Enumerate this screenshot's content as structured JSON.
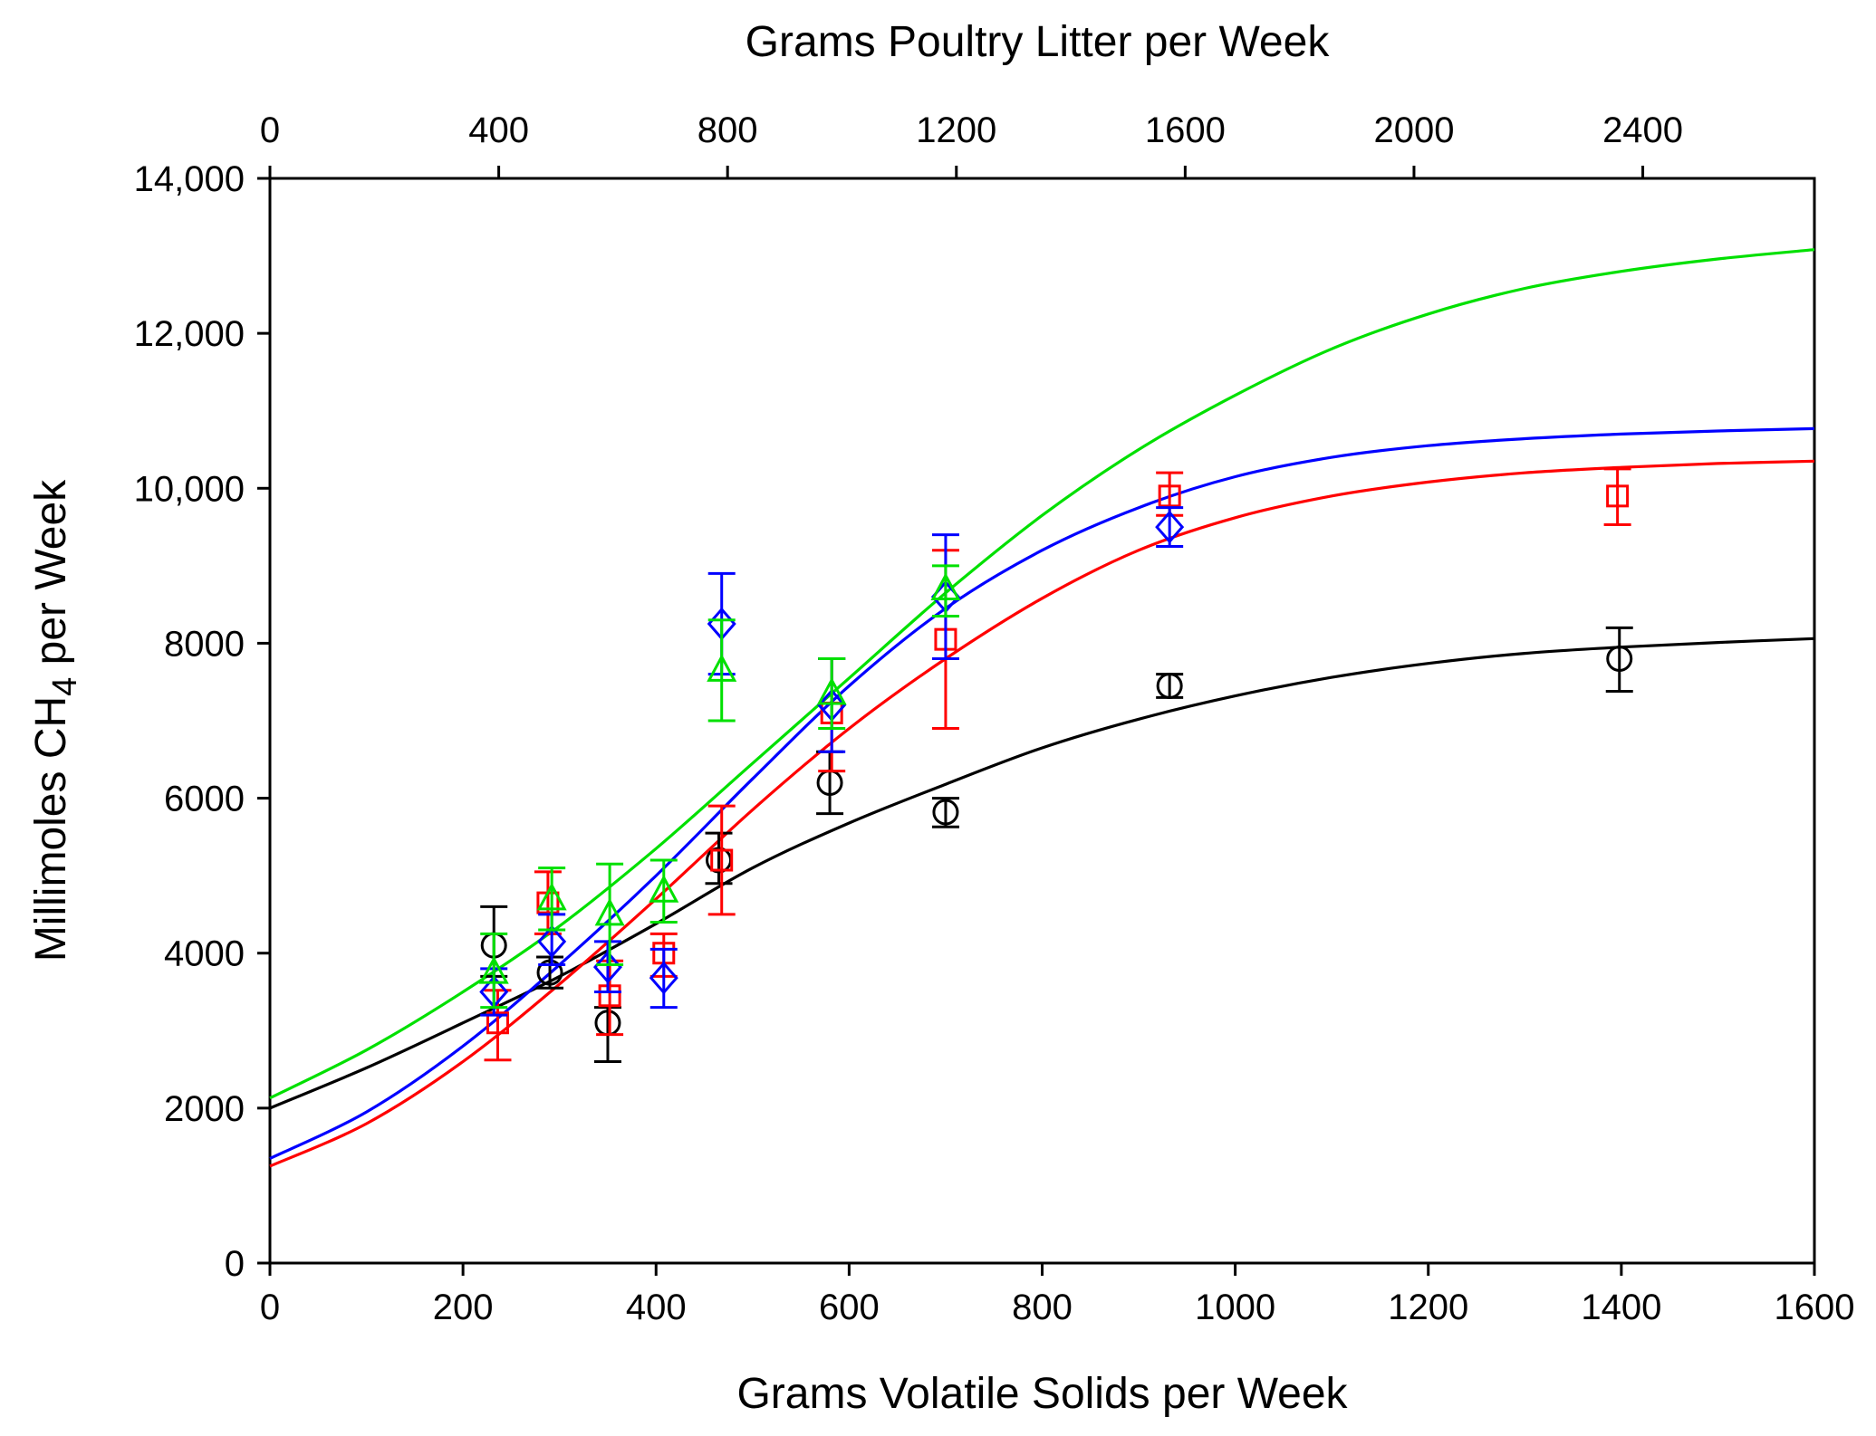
{
  "chart_data": {
    "type": "scatter",
    "title": "",
    "xlabel": "Grams Volatile Solids per Week",
    "x2label": "Grams Poultry Litter per Week",
    "ylabel_parts": [
      "Millimoles CH",
      "4",
      " per Week"
    ],
    "xlim": [
      0,
      1600
    ],
    "x2lim": [
      0,
      2700
    ],
    "ylim": [
      0,
      14000
    ],
    "x_ticks": [
      0,
      200,
      400,
      600,
      800,
      1000,
      1200,
      1400,
      1600
    ],
    "x_tick_labels": [
      "0",
      "200",
      "400",
      "600",
      "800",
      "1000",
      "1200",
      "1400",
      "1600"
    ],
    "x2_ticks": [
      0,
      400,
      800,
      1200,
      1600,
      2000,
      2400
    ],
    "x2_tick_labels": [
      "0",
      "400",
      "800",
      "1200",
      "1600",
      "2000",
      "2400"
    ],
    "y_ticks": [
      0,
      2000,
      4000,
      6000,
      8000,
      10000,
      12000,
      14000
    ],
    "y_tick_labels": [
      "0",
      "2000",
      "4000",
      "6000",
      "8000",
      "10,000",
      "12,000",
      "14,000"
    ],
    "grid": false,
    "series": [
      {
        "name": "black",
        "color": "#000000",
        "marker": "circle",
        "points": [
          {
            "x": 232,
            "y": 4100,
            "lo": 3700,
            "hi": 4600
          },
          {
            "x": 290,
            "y": 3750,
            "lo": 3550,
            "hi": 3950
          },
          {
            "x": 350,
            "y": 3100,
            "lo": 2600,
            "hi": 3300
          },
          {
            "x": 465,
            "y": 5200,
            "lo": 4900,
            "hi": 5550
          },
          {
            "x": 580,
            "y": 6200,
            "lo": 5800,
            "hi": 6600
          },
          {
            "x": 700,
            "y": 5820,
            "lo": 5630,
            "hi": 6000
          },
          {
            "x": 932,
            "y": 7450,
            "lo": 7300,
            "hi": 7600
          },
          {
            "x": 1398,
            "y": 7800,
            "lo": 7380,
            "hi": 8200
          }
        ],
        "curve": [
          {
            "x": 0,
            "y": 2000
          },
          {
            "x": 100,
            "y": 2520
          },
          {
            "x": 200,
            "y": 3100
          },
          {
            "x": 300,
            "y": 3700
          },
          {
            "x": 400,
            "y": 4380
          },
          {
            "x": 500,
            "y": 5100
          },
          {
            "x": 600,
            "y": 5680
          },
          {
            "x": 700,
            "y": 6180
          },
          {
            "x": 800,
            "y": 6650
          },
          {
            "x": 900,
            "y": 7020
          },
          {
            "x": 1000,
            "y": 7320
          },
          {
            "x": 1100,
            "y": 7560
          },
          {
            "x": 1200,
            "y": 7740
          },
          {
            "x": 1300,
            "y": 7870
          },
          {
            "x": 1400,
            "y": 7950
          },
          {
            "x": 1500,
            "y": 8010
          },
          {
            "x": 1600,
            "y": 8060
          }
        ]
      },
      {
        "name": "red",
        "color": "#ff0000",
        "marker": "square",
        "points": [
          {
            "x": 236,
            "y": 3100,
            "lo": 2620,
            "hi": 3520
          },
          {
            "x": 288,
            "y": 4650,
            "lo": 4250,
            "hi": 5050
          },
          {
            "x": 352,
            "y": 3450,
            "lo": 2950,
            "hi": 3900
          },
          {
            "x": 408,
            "y": 4000,
            "lo": 3700,
            "hi": 4250
          },
          {
            "x": 468,
            "y": 5200,
            "lo": 4500,
            "hi": 5900
          },
          {
            "x": 582,
            "y": 7100,
            "lo": 6350,
            "hi": 7800
          },
          {
            "x": 700,
            "y": 8050,
            "lo": 6900,
            "hi": 9200
          },
          {
            "x": 932,
            "y": 9900,
            "lo": 9650,
            "hi": 10200
          },
          {
            "x": 1396,
            "y": 9900,
            "lo": 9530,
            "hi": 10250
          }
        ],
        "curve": [
          {
            "x": 0,
            "y": 1250
          },
          {
            "x": 100,
            "y": 1800
          },
          {
            "x": 200,
            "y": 2600
          },
          {
            "x": 300,
            "y": 3600
          },
          {
            "x": 400,
            "y": 4700
          },
          {
            "x": 500,
            "y": 5850
          },
          {
            "x": 600,
            "y": 6900
          },
          {
            "x": 700,
            "y": 7800
          },
          {
            "x": 800,
            "y": 8580
          },
          {
            "x": 900,
            "y": 9200
          },
          {
            "x": 1000,
            "y": 9620
          },
          {
            "x": 1100,
            "y": 9900
          },
          {
            "x": 1200,
            "y": 10080
          },
          {
            "x": 1300,
            "y": 10200
          },
          {
            "x": 1400,
            "y": 10270
          },
          {
            "x": 1500,
            "y": 10320
          },
          {
            "x": 1600,
            "y": 10350
          }
        ]
      },
      {
        "name": "blue",
        "color": "#0000ff",
        "marker": "diamond",
        "points": [
          {
            "x": 232,
            "y": 3500,
            "lo": 3200,
            "hi": 3800
          },
          {
            "x": 292,
            "y": 4150,
            "lo": 3850,
            "hi": 4500
          },
          {
            "x": 350,
            "y": 3820,
            "lo": 3500,
            "hi": 4150
          },
          {
            "x": 408,
            "y": 3680,
            "lo": 3300,
            "hi": 4050
          },
          {
            "x": 468,
            "y": 8250,
            "lo": 7600,
            "hi": 8900
          },
          {
            "x": 582,
            "y": 7200,
            "lo": 6600,
            "hi": 7800
          },
          {
            "x": 700,
            "y": 8600,
            "lo": 7800,
            "hi": 9400
          },
          {
            "x": 932,
            "y": 9500,
            "lo": 9250,
            "hi": 9750
          }
        ],
        "curve": [
          {
            "x": 0,
            "y": 1350
          },
          {
            "x": 100,
            "y": 1950
          },
          {
            "x": 200,
            "y": 2800
          },
          {
            "x": 300,
            "y": 3850
          },
          {
            "x": 400,
            "y": 5000
          },
          {
            "x": 500,
            "y": 6250
          },
          {
            "x": 600,
            "y": 7450
          },
          {
            "x": 700,
            "y": 8450
          },
          {
            "x": 800,
            "y": 9200
          },
          {
            "x": 900,
            "y": 9750
          },
          {
            "x": 1000,
            "y": 10150
          },
          {
            "x": 1100,
            "y": 10400
          },
          {
            "x": 1200,
            "y": 10550
          },
          {
            "x": 1300,
            "y": 10640
          },
          {
            "x": 1400,
            "y": 10700
          },
          {
            "x": 1500,
            "y": 10740
          },
          {
            "x": 1600,
            "y": 10770
          }
        ]
      },
      {
        "name": "green",
        "color": "#00e000",
        "marker": "triangle",
        "points": [
          {
            "x": 232,
            "y": 3750,
            "lo": 3300,
            "hi": 4250
          },
          {
            "x": 292,
            "y": 4700,
            "lo": 4300,
            "hi": 5100
          },
          {
            "x": 352,
            "y": 4500,
            "lo": 3850,
            "hi": 5150
          },
          {
            "x": 408,
            "y": 4800,
            "lo": 4400,
            "hi": 5200
          },
          {
            "x": 468,
            "y": 7650,
            "lo": 7000,
            "hi": 8300
          },
          {
            "x": 582,
            "y": 7350,
            "lo": 6900,
            "hi": 7800
          },
          {
            "x": 700,
            "y": 8700,
            "lo": 8350,
            "hi": 9000
          }
        ],
        "curve": [
          {
            "x": 0,
            "y": 2130
          },
          {
            "x": 100,
            "y": 2750
          },
          {
            "x": 200,
            "y": 3500
          },
          {
            "x": 300,
            "y": 4350
          },
          {
            "x": 400,
            "y": 5350
          },
          {
            "x": 500,
            "y": 6450
          },
          {
            "x": 600,
            "y": 7550
          },
          {
            "x": 700,
            "y": 8650
          },
          {
            "x": 800,
            "y": 9650
          },
          {
            "x": 900,
            "y": 10500
          },
          {
            "x": 1000,
            "y": 11200
          },
          {
            "x": 1100,
            "y": 11800
          },
          {
            "x": 1200,
            "y": 12250
          },
          {
            "x": 1300,
            "y": 12580
          },
          {
            "x": 1400,
            "y": 12800
          },
          {
            "x": 1500,
            "y": 12960
          },
          {
            "x": 1600,
            "y": 13080
          }
        ]
      }
    ]
  }
}
